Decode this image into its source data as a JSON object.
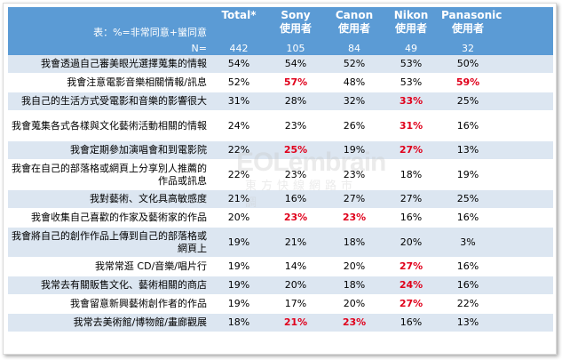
{
  "header": {
    "question_label": "表：%=非常同意+蠻同意",
    "n_label": "N=",
    "columns": [
      {
        "line1": "Total*",
        "line2": "",
        "n": "442"
      },
      {
        "line1": "Sony",
        "line2": "使用者",
        "n": "105"
      },
      {
        "line1": "Canon",
        "line2": "使用者",
        "n": "84"
      },
      {
        "line1": "Nikon",
        "line2": "使用者",
        "n": "49"
      },
      {
        "line1": "Panasonic",
        "line2": "使用者",
        "n": "32"
      }
    ]
  },
  "rows": [
    {
      "label": "我會透過自己審美眼光選擇蒐集的情報",
      "values": [
        "54%",
        "54%",
        "52%",
        "53%",
        "50%"
      ],
      "highlight": [
        false,
        false,
        false,
        false,
        false
      ]
    },
    {
      "label": "我會注意電影音樂相關情報/訊息",
      "values": [
        "52%",
        "57%",
        "48%",
        "53%",
        "59%"
      ],
      "highlight": [
        false,
        true,
        false,
        false,
        true
      ]
    },
    {
      "label": "我自己的生活方式受電影和音樂的影響很大",
      "values": [
        "31%",
        "28%",
        "32%",
        "33%",
        "25%"
      ],
      "highlight": [
        false,
        false,
        false,
        true,
        false
      ]
    },
    {
      "label": "我會蒐集各式各樣與文化藝術活動相關的情報",
      "values": [
        "24%",
        "23%",
        "26%",
        "31%",
        "16%"
      ],
      "highlight": [
        false,
        false,
        false,
        true,
        false
      ]
    },
    {
      "label": "我會定期參加演唱會和到電影院",
      "values": [
        "22%",
        "25%",
        "19%",
        "27%",
        "13%"
      ],
      "highlight": [
        false,
        true,
        false,
        true,
        false
      ]
    },
    {
      "label": "我會在自己的部落格或網頁上分享別人推薦的作品或訊息",
      "values": [
        "22%",
        "23%",
        "23%",
        "18%",
        "19%"
      ],
      "highlight": [
        false,
        false,
        false,
        false,
        false
      ]
    },
    {
      "label": "我對藝術、文化具高敏感度",
      "values": [
        "21%",
        "16%",
        "27%",
        "27%",
        "25%"
      ],
      "highlight": [
        false,
        false,
        false,
        false,
        false
      ]
    },
    {
      "label": "我會收集自己喜歡的作家及藝術家的作品",
      "values": [
        "20%",
        "23%",
        "23%",
        "16%",
        "16%"
      ],
      "highlight": [
        false,
        true,
        true,
        false,
        false
      ]
    },
    {
      "label": "我會將自己的創作作品上傳到自己的部落格或網頁上",
      "values": [
        "19%",
        "21%",
        "18%",
        "20%",
        "3%"
      ],
      "highlight": [
        false,
        false,
        false,
        false,
        false
      ]
    },
    {
      "label": "我常常逛 CD/音樂/唱片行",
      "values": [
        "19%",
        "14%",
        "20%",
        "27%",
        "16%"
      ],
      "highlight": [
        false,
        false,
        false,
        true,
        false
      ]
    },
    {
      "label": "我常去有關販售文化、藝術相關的商店",
      "values": [
        "19%",
        "20%",
        "18%",
        "24%",
        "16%"
      ],
      "highlight": [
        false,
        false,
        false,
        true,
        false
      ]
    },
    {
      "label": "我會留意新興藝術創作者的作品",
      "values": [
        "19%",
        "17%",
        "20%",
        "27%",
        "22%"
      ],
      "highlight": [
        false,
        false,
        false,
        true,
        false
      ]
    },
    {
      "label": "我常去美術館/博物館/畫廊觀展",
      "values": [
        "18%",
        "21%",
        "23%",
        "16%",
        "13%"
      ],
      "highlight": [
        false,
        true,
        true,
        false,
        false
      ]
    }
  ],
  "watermark": {
    "main": "EOLembrain",
    "sub": "東方快線網路市調"
  }
}
